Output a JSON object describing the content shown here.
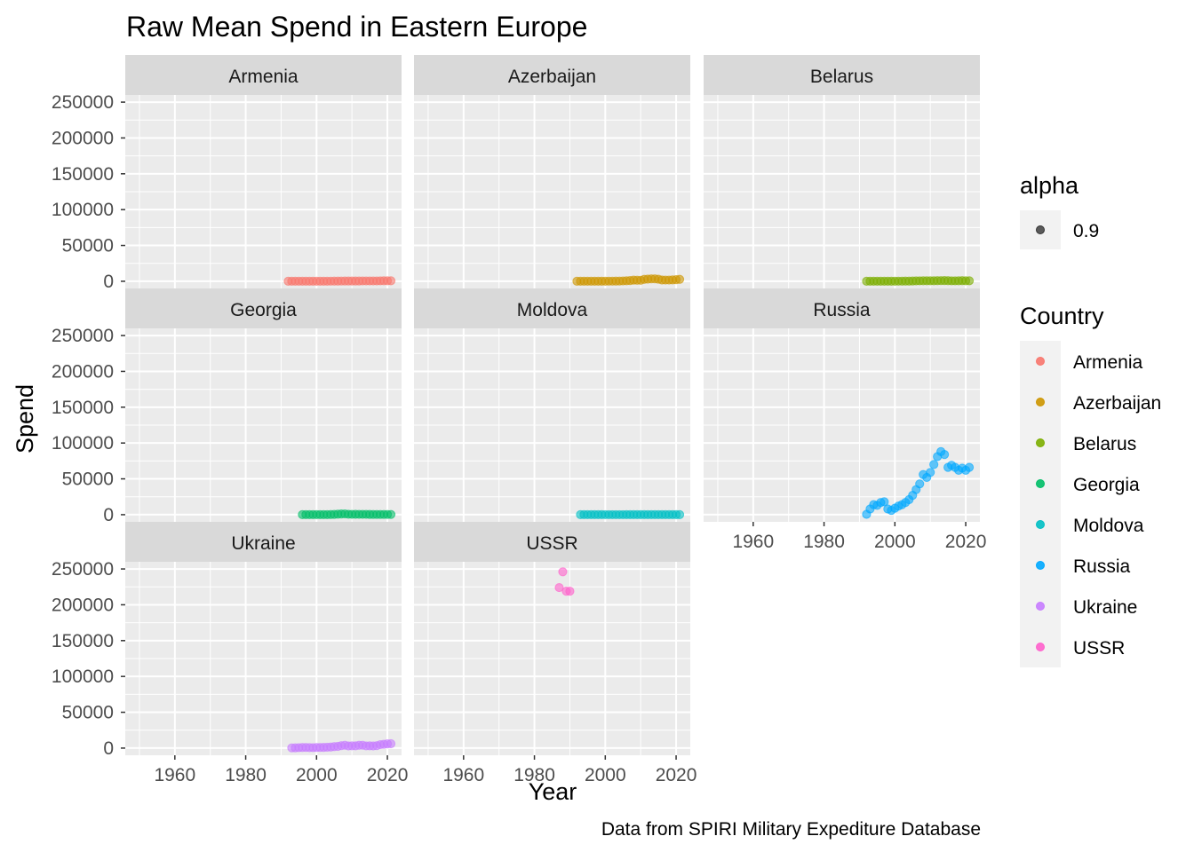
{
  "chart_data": {
    "type": "scatter",
    "title": "Raw Mean Spend in Eastern Europe",
    "xlabel": "Year",
    "ylabel": "Spend",
    "caption": "Data from SPIRI Military Expediture Database",
    "xlim": [
      1946,
      2024
    ],
    "ylim": [
      -10000,
      260000
    ],
    "x_ticks": [
      1960,
      1980,
      2000,
      2020
    ],
    "y_ticks": [
      0,
      50000,
      100000,
      150000,
      200000,
      250000
    ],
    "grid": true,
    "point_alpha": 0.6,
    "legend_alpha": {
      "title": "alpha",
      "label": "0.9",
      "color": "#333333"
    },
    "legend_country": {
      "title": "Country",
      "placement": "right",
      "entries": [
        {
          "name": "Armenia",
          "color": "#F8766D"
        },
        {
          "name": "Azerbaijan",
          "color": "#CD9600"
        },
        {
          "name": "Belarus",
          "color": "#7CAE00"
        },
        {
          "name": "Georgia",
          "color": "#00BE67"
        },
        {
          "name": "Moldova",
          "color": "#00BFC4"
        },
        {
          "name": "Russia",
          "color": "#00A9FF"
        },
        {
          "name": "Ukraine",
          "color": "#C77CFF"
        },
        {
          "name": "USSR",
          "color": "#FF61CC"
        }
      ]
    },
    "series": [
      {
        "name": "Armenia",
        "color": "#F8766D",
        "x": [
          1992,
          1993,
          1994,
          1995,
          1996,
          1997,
          1998,
          1999,
          2000,
          2001,
          2002,
          2003,
          2004,
          2005,
          2006,
          2007,
          2008,
          2009,
          2010,
          2011,
          2012,
          2013,
          2014,
          2015,
          2016,
          2017,
          2018,
          2019,
          2020,
          2021
        ],
        "y": [
          100,
          100,
          100,
          100,
          100,
          100,
          100,
          100,
          100,
          100,
          100,
          100,
          150,
          200,
          250,
          300,
          400,
          400,
          400,
          400,
          400,
          450,
          450,
          450,
          450,
          450,
          600,
          650,
          700,
          650
        ]
      },
      {
        "name": "Azerbaijan",
        "color": "#CD9600",
        "x": [
          1992,
          1993,
          1994,
          1995,
          1996,
          1997,
          1998,
          1999,
          2000,
          2001,
          2002,
          2003,
          2004,
          2005,
          2006,
          2007,
          2008,
          2009,
          2010,
          2011,
          2012,
          2013,
          2014,
          2015,
          2016,
          2017,
          2018,
          2019,
          2020,
          2021
        ],
        "y": [
          100,
          100,
          100,
          100,
          100,
          100,
          100,
          100,
          100,
          150,
          150,
          200,
          300,
          450,
          700,
          1000,
          1600,
          1500,
          1400,
          2700,
          3000,
          3400,
          3400,
          2900,
          1800,
          1700,
          1700,
          1900,
          2200,
          2700
        ]
      },
      {
        "name": "Belarus",
        "color": "#7CAE00",
        "x": [
          1992,
          1993,
          1994,
          1995,
          1996,
          1997,
          1998,
          1999,
          2000,
          2001,
          2002,
          2003,
          2004,
          2005,
          2006,
          2007,
          2008,
          2009,
          2010,
          2011,
          2012,
          2013,
          2014,
          2015,
          2016,
          2017,
          2018,
          2019,
          2020,
          2021
        ],
        "y": [
          100,
          100,
          100,
          100,
          100,
          100,
          100,
          100,
          100,
          150,
          150,
          200,
          250,
          350,
          500,
          600,
          700,
          650,
          700,
          700,
          800,
          900,
          1000,
          800,
          600,
          600,
          700,
          800,
          700,
          700
        ]
      },
      {
        "name": "Georgia",
        "color": "#00BE67",
        "x": [
          1996,
          1997,
          1998,
          1999,
          2000,
          2001,
          2002,
          2003,
          2004,
          2005,
          2006,
          2007,
          2008,
          2009,
          2010,
          2011,
          2012,
          2013,
          2014,
          2015,
          2016,
          2017,
          2018,
          2019,
          2020,
          2021
        ],
        "y": [
          50,
          50,
          50,
          50,
          50,
          50,
          50,
          70,
          200,
          350,
          700,
          1000,
          1100,
          600,
          450,
          500,
          450,
          450,
          450,
          350,
          300,
          300,
          300,
          300,
          300,
          300
        ]
      },
      {
        "name": "Moldova",
        "color": "#00BFC4",
        "x": [
          1993,
          1994,
          1995,
          1996,
          1997,
          1998,
          1999,
          2000,
          2001,
          2002,
          2003,
          2004,
          2005,
          2006,
          2007,
          2008,
          2009,
          2010,
          2011,
          2012,
          2013,
          2014,
          2015,
          2016,
          2017,
          2018,
          2019,
          2020,
          2021
        ],
        "y": [
          20,
          20,
          20,
          20,
          20,
          20,
          20,
          10,
          10,
          10,
          10,
          10,
          10,
          20,
          20,
          30,
          30,
          20,
          20,
          20,
          30,
          30,
          30,
          30,
          30,
          40,
          50,
          50,
          50
        ]
      },
      {
        "name": "Russia",
        "color": "#00A9FF",
        "x": [
          1992,
          1993,
          1994,
          1995,
          1996,
          1997,
          1998,
          1999,
          2000,
          2001,
          2002,
          2003,
          2004,
          2005,
          2006,
          2007,
          2008,
          2009,
          2010,
          2011,
          2012,
          2013,
          2014,
          2015,
          2016,
          2017,
          2018,
          2019,
          2020,
          2021
        ],
        "y": [
          500,
          8000,
          14000,
          13000,
          17000,
          18000,
          8000,
          6000,
          9000,
          12000,
          14000,
          17000,
          21000,
          27000,
          35000,
          43000,
          56000,
          52000,
          59000,
          70000,
          81000,
          88000,
          84000,
          66000,
          69000,
          66000,
          62000,
          65000,
          62000,
          66000
        ]
      },
      {
        "name": "Ukraine",
        "color": "#C77CFF",
        "x": [
          1993,
          1994,
          1995,
          1996,
          1997,
          1998,
          1999,
          2000,
          2001,
          2002,
          2003,
          2004,
          2005,
          2006,
          2007,
          2008,
          2009,
          2010,
          2011,
          2012,
          2013,
          2014,
          2015,
          2016,
          2017,
          2018,
          2019,
          2020,
          2021
        ],
        "y": [
          300,
          400,
          600,
          800,
          900,
          700,
          600,
          800,
          900,
          1000,
          1200,
          1500,
          2100,
          2400,
          3400,
          4000,
          3000,
          3200,
          3200,
          3900,
          4000,
          3100,
          3200,
          3000,
          3400,
          4800,
          5300,
          5900,
          6100
        ]
      },
      {
        "name": "USSR",
        "color": "#FF61CC",
        "x": [
          1987,
          1988,
          1989,
          1990
        ],
        "y": [
          224000,
          246000,
          219000,
          219000
        ]
      }
    ]
  }
}
